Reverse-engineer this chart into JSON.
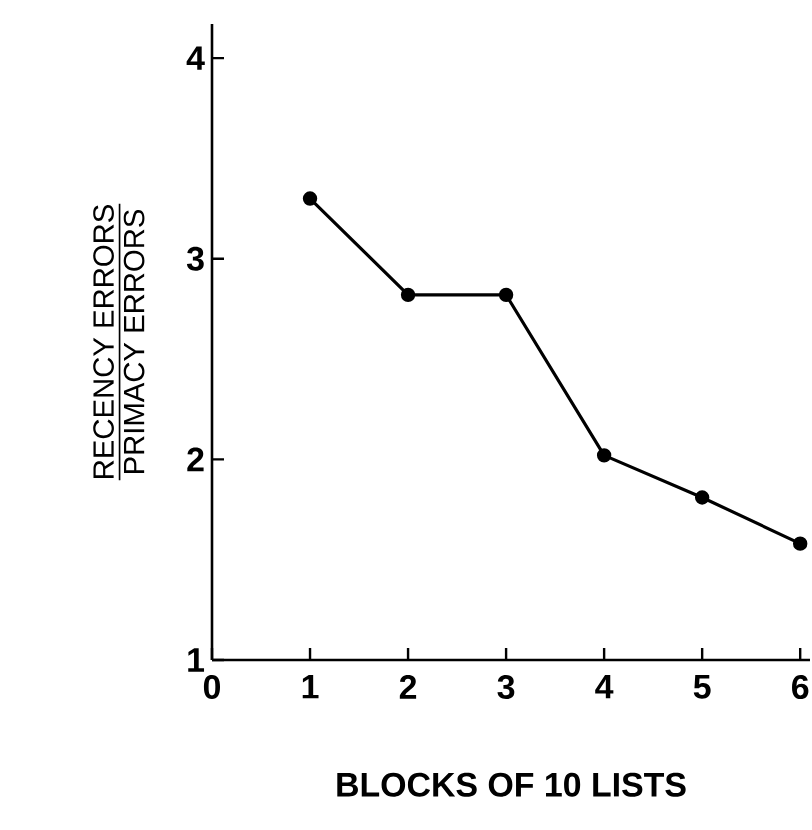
{
  "chart_data": {
    "type": "line",
    "xlabel": "BLOCKS OF 10 LISTS",
    "ylabel": "\\frac{\\text{RECENCY ERRORS}}{\\text{PRIMACY ERRORS}}",
    "x": [
      1,
      2,
      3,
      4,
      5,
      6
    ],
    "values": [
      3.3,
      2.82,
      2.82,
      2.02,
      1.81,
      1.58
    ],
    "color": "#000000",
    "marker": "circle",
    "line_style": "solid",
    "xlim": [
      0,
      6.1
    ],
    "ylim": [
      1,
      4.17
    ],
    "xticks": [
      0,
      1,
      2,
      3,
      4,
      5,
      6
    ],
    "yticks": [
      1,
      2,
      3,
      4
    ]
  }
}
